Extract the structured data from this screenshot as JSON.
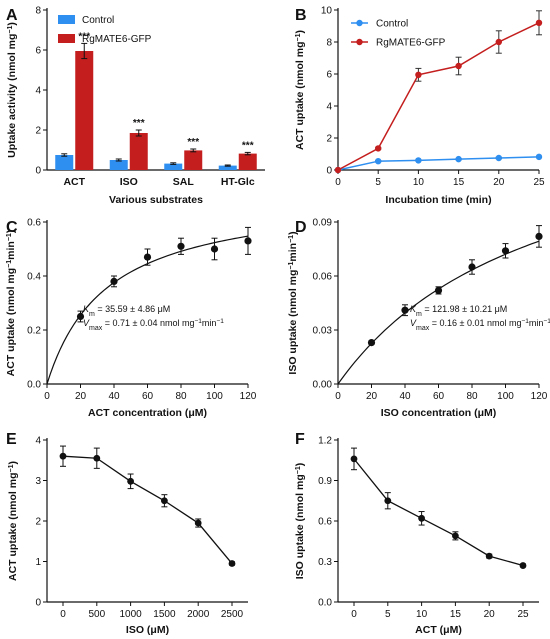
{
  "chart_data": [
    {
      "panel": "A",
      "type": "bar",
      "xlabel": "Various substrates",
      "ylabel": "Uptake activity (nmol mg⁻¹)",
      "categories": [
        "ACT",
        "ISO",
        "SAL",
        "HT-Glc"
      ],
      "ylim": [
        0,
        8
      ],
      "yticks": [
        0,
        2,
        4,
        6,
        8
      ],
      "legend_position": "top-left",
      "series": [
        {
          "name": "Control",
          "color": "#2e8ff0",
          "values": [
            0.75,
            0.5,
            0.32,
            0.22
          ],
          "errors": [
            0.06,
            0.05,
            0.04,
            0.03
          ]
        },
        {
          "name": "RgMATE6-GFP",
          "color": "#c41e1e",
          "values": [
            5.95,
            1.85,
            0.98,
            0.82
          ],
          "errors": [
            0.38,
            0.15,
            0.07,
            0.06
          ]
        }
      ],
      "significance": [
        "***",
        "***",
        "***",
        "***"
      ]
    },
    {
      "panel": "B",
      "type": "line",
      "xlabel": "Incubation time (min)",
      "ylabel": "ACT uptake (nmol mg⁻¹)",
      "xlim": [
        0,
        25
      ],
      "ylim": [
        0,
        10
      ],
      "xticks": [
        0,
        5,
        10,
        15,
        20,
        25
      ],
      "yticks": [
        0,
        2,
        4,
        6,
        8,
        10
      ],
      "legend_position": "top-left",
      "x": [
        0,
        5,
        10,
        15,
        20,
        25
      ],
      "series": [
        {
          "name": "Control",
          "color": "#2e8ff0",
          "values": [
            0,
            0.55,
            0.6,
            0.68,
            0.75,
            0.82
          ],
          "errors": [
            0,
            0.04,
            0.04,
            0.04,
            0.05,
            0.05
          ]
        },
        {
          "name": "RgMATE6-GFP",
          "color": "#c41e1e",
          "values": [
            0,
            1.35,
            5.95,
            6.5,
            8.0,
            9.2
          ],
          "errors": [
            0,
            0.05,
            0.4,
            0.55,
            0.7,
            0.75
          ]
        }
      ]
    },
    {
      "panel": "C",
      "type": "scatter",
      "xlabel": "ACT concentration (μM)",
      "ylabel": "ACT uptake (nmol mg⁻¹min⁻¹)",
      "xlim": [
        0,
        120
      ],
      "ylim": [
        0,
        0.6
      ],
      "xticks": [
        0,
        20,
        40,
        60,
        80,
        100,
        120
      ],
      "yticks": [
        "0.0",
        "0.2",
        "0.4",
        "0.6"
      ],
      "x": [
        20,
        40,
        60,
        80,
        100,
        120
      ],
      "values": [
        0.25,
        0.38,
        0.47,
        0.51,
        0.5,
        0.53
      ],
      "errors": [
        0.02,
        0.02,
        0.03,
        0.03,
        0.04,
        0.05
      ],
      "fit": {
        "vmax": 0.71,
        "km": 35.59
      },
      "annotations": {
        "km_symbol": "K",
        "km_sub": "m",
        "km_text": " = 35.59 ± 4.86 μM",
        "vmax_symbol": "V",
        "vmax_sub": "max",
        "vmax_text": " = 0.71 ± 0.04 nmol mg⁻¹min⁻¹"
      }
    },
    {
      "panel": "D",
      "type": "scatter",
      "xlabel": "ISO concentration (μM)",
      "ylabel": "ISO uptake (nmol mg⁻¹min⁻¹)",
      "xlim": [
        0,
        120
      ],
      "ylim": [
        0,
        0.09
      ],
      "xticks": [
        0,
        20,
        40,
        60,
        80,
        100,
        120
      ],
      "yticks": [
        "0.00",
        "0.03",
        "0.06",
        "0.09"
      ],
      "x": [
        20,
        40,
        60,
        80,
        100,
        120
      ],
      "values": [
        0.023,
        0.041,
        0.052,
        0.065,
        0.074,
        0.082
      ],
      "errors": [
        0.001,
        0.003,
        0.002,
        0.004,
        0.004,
        0.006
      ],
      "fit": {
        "vmax": 0.16,
        "km": 121.98
      },
      "annotations": {
        "km_symbol": "K",
        "km_sub": "m",
        "km_text": " = 121.98 ± 10.21 μM",
        "vmax_symbol": "V",
        "vmax_sub": "max",
        "vmax_text": " = 0.16 ± 0.01 nmol mg⁻¹min⁻¹"
      }
    },
    {
      "panel": "E",
      "type": "line",
      "xlabel": "ISO (μM)",
      "ylabel": "ACT uptake (nmol mg⁻¹)",
      "ylim": [
        0,
        4
      ],
      "categories": [
        "0",
        "500",
        "1000",
        "1500",
        "2000",
        "2500"
      ],
      "yticks": [
        0,
        1,
        2,
        3,
        4
      ],
      "values": [
        3.6,
        3.55,
        2.98,
        2.5,
        1.95,
        0.95
      ],
      "errors": [
        0.25,
        0.25,
        0.18,
        0.15,
        0.1,
        0.04
      ]
    },
    {
      "panel": "F",
      "type": "line",
      "xlabel": "ACT (μM)",
      "ylabel": "ISO uptake (nmol mg⁻¹)",
      "ylim": [
        0,
        1.2
      ],
      "categories": [
        "0",
        "5",
        "10",
        "15",
        "20",
        "25"
      ],
      "yticks": [
        "0.0",
        "0.3",
        "0.6",
        "0.9",
        "1.2"
      ],
      "values": [
        1.06,
        0.75,
        0.62,
        0.49,
        0.34,
        0.27
      ],
      "errors": [
        0.08,
        0.06,
        0.05,
        0.03,
        0.015,
        0.01
      ]
    }
  ]
}
